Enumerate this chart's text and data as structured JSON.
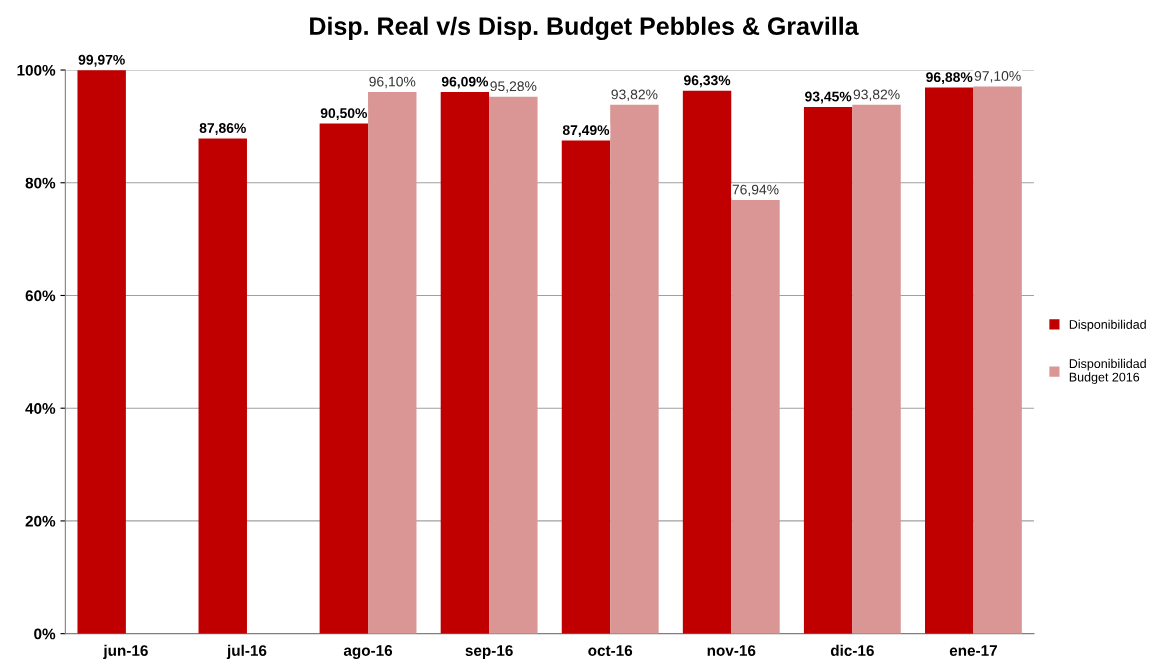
{
  "chart_data": {
    "type": "bar",
    "title": "Disp. Real v/s Disp. Budget Pebbles & Gravilla",
    "categories": [
      "jun-16",
      "jul-16",
      "ago-16",
      "sep-16",
      "oct-16",
      "nov-16",
      "dic-16",
      "ene-17"
    ],
    "series": [
      {
        "name": "Disponibilidad",
        "color": "#c00000",
        "values": [
          99.97,
          87.86,
          90.5,
          96.09,
          87.49,
          96.33,
          93.45,
          96.88
        ],
        "value_labels": [
          "99,97%",
          "87,86%",
          "90,50%",
          "96,09%",
          "87,49%",
          "96,33%",
          "93,45%",
          "96,88%"
        ]
      },
      {
        "name": "Disponibilidad Budget 2016",
        "color": "#d99694",
        "values": [
          null,
          null,
          96.1,
          95.28,
          93.82,
          76.94,
          93.82,
          97.1
        ],
        "value_labels": [
          null,
          null,
          "96,10%",
          "95,28%",
          "93,82%",
          "76,94%",
          "93,82%",
          "97,10%"
        ]
      }
    ],
    "ylim": [
      0,
      100
    ],
    "yticks": [
      {
        "value": 0,
        "label": "0%"
      },
      {
        "value": 20,
        "label": "20%"
      },
      {
        "value": 40,
        "label": "40%"
      },
      {
        "value": 60,
        "label": "60%"
      },
      {
        "value": 80,
        "label": "80%"
      },
      {
        "value": 100,
        "label": "100%"
      }
    ],
    "grid": "y",
    "legend": "right"
  }
}
